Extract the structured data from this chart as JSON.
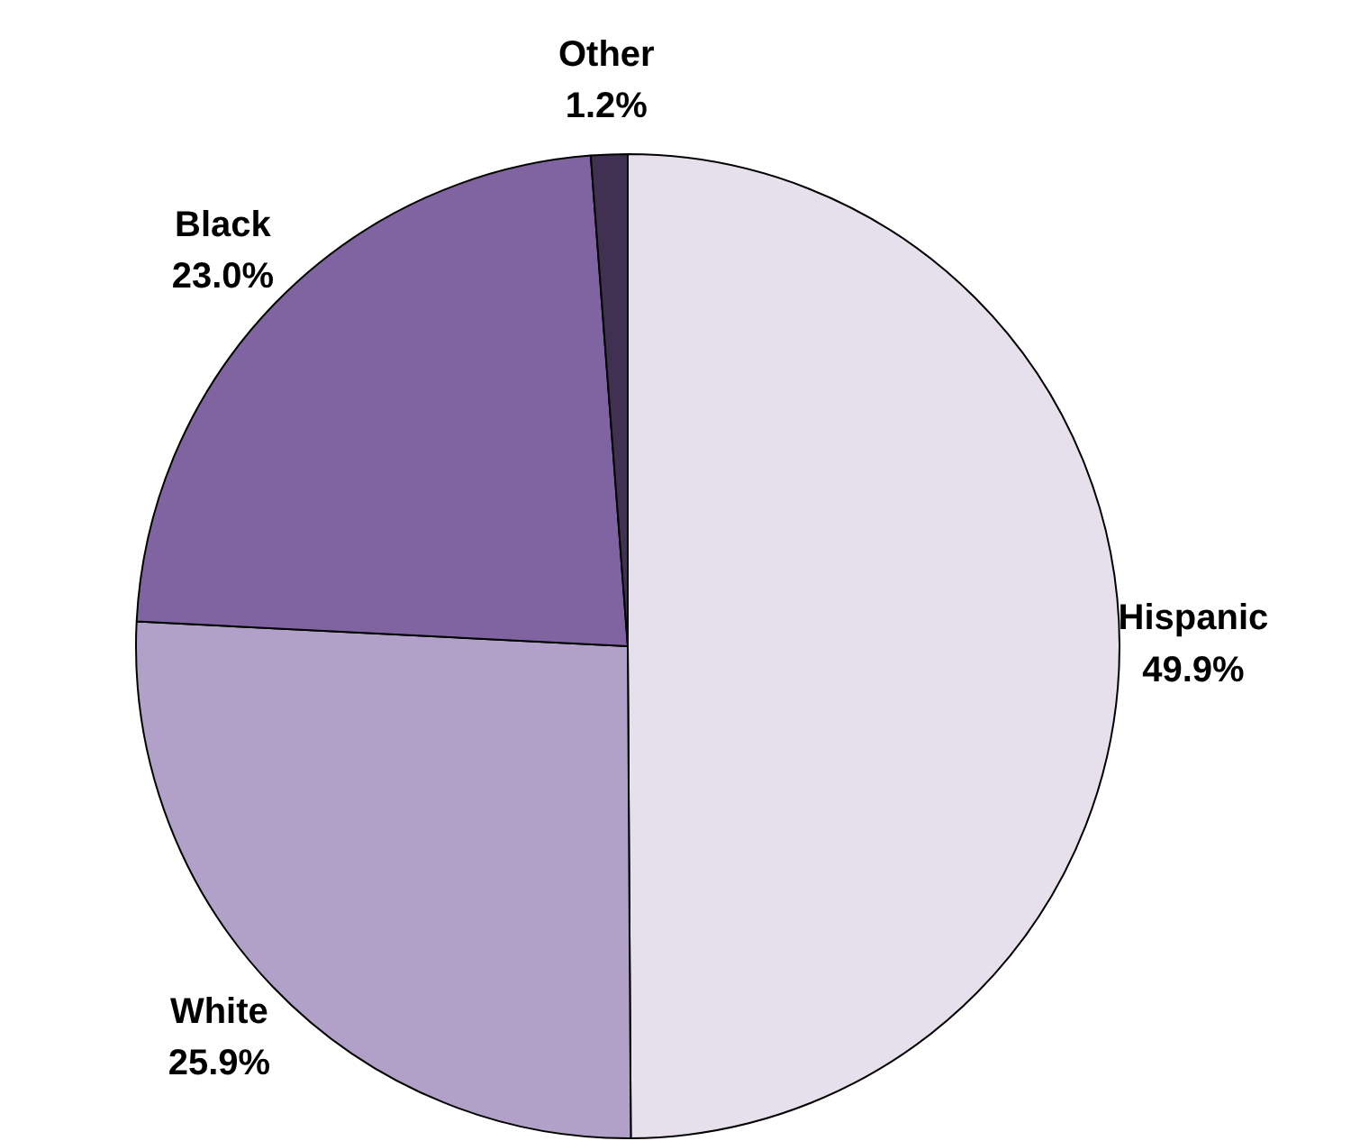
{
  "chart_data": {
    "type": "pie",
    "categories": [
      "Hispanic",
      "White",
      "Black",
      "Other"
    ],
    "values": [
      49.9,
      25.9,
      23.0,
      1.2
    ],
    "colors": [
      "#e6dfec",
      "#b1a0c7",
      "#8064a2",
      "#403152"
    ],
    "value_labels": [
      "49.9%",
      "25.9%",
      "23.0%",
      "1.2%"
    ],
    "legend": false
  }
}
